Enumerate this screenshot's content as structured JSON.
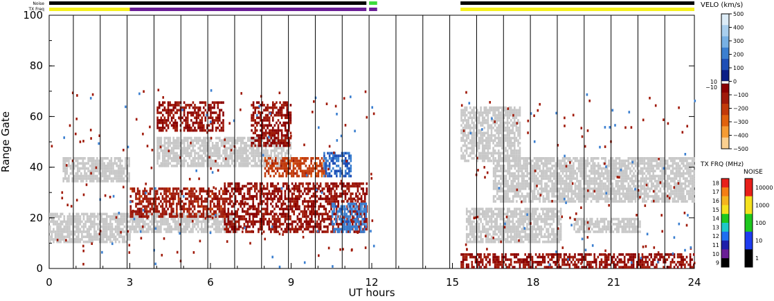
{
  "header": {
    "noise_label": "Noise",
    "txfreq_label": "TX Freq"
  },
  "chart_data": {
    "type": "heatmap",
    "xlabel": "UT hours",
    "ylabel": "Range Gate",
    "xlim": [
      0,
      24
    ],
    "ylim": [
      0,
      100
    ],
    "x_ticks": [
      "0",
      "3",
      "6",
      "9",
      "12",
      "15",
      "18",
      "21",
      "24"
    ],
    "y_ticks": [
      "0",
      "20",
      "40",
      "60",
      "80",
      "100"
    ],
    "velocity_scale": {
      "title": "VELO (km/s)",
      "ticks": [
        "500",
        "400",
        "300",
        "200",
        "100",
        "0",
        "−100",
        "−200",
        "−300",
        "−400",
        "−500"
      ],
      "threshold_labels": [
        "10",
        "−10"
      ],
      "colors": [
        "#dcecf7",
        "#a9cfee",
        "#78b1e4",
        "#3b7fd0",
        "#1e4fb6",
        "#0b1e86",
        "#8a0000",
        "#a01a0a",
        "#c23a0a",
        "#e0620e",
        "#f59c34",
        "#fad090"
      ]
    },
    "txfreq_scale": {
      "title": "TX FRQ (MHz)",
      "ticks": [
        "18",
        "17",
        "16",
        "15",
        "14",
        "13",
        "12",
        "11",
        "10",
        "9"
      ],
      "colors": [
        "#e8201a",
        "#f57e14",
        "#f5b41e",
        "#f5e11e",
        "#1ec81e",
        "#1ec8c8",
        "#1e6ef0",
        "#1e1eaa",
        "#6a1e96",
        "#000000"
      ]
    },
    "noise_scale": {
      "title": "NOISE",
      "ticks": [
        "10000",
        "1000",
        "100",
        "10",
        "1"
      ],
      "colors": [
        "#e8201a",
        "#f5e11e",
        "#1ec81e",
        "#1e3cf0",
        "#000000"
      ]
    },
    "noise_bar_segments": [
      {
        "start": 0,
        "end": 11.8,
        "color": "#000000"
      },
      {
        "start": 11.9,
        "end": 12.2,
        "color": "#3cdc3c"
      },
      {
        "start": 15.3,
        "end": 24,
        "color": "#000000"
      }
    ],
    "txfreq_bar_segments": [
      {
        "start": 0,
        "end": 3.0,
        "color": "#f5f01e"
      },
      {
        "start": 3.0,
        "end": 11.8,
        "color": "#6a1e96"
      },
      {
        "start": 11.9,
        "end": 12.2,
        "color": "#6a1e96"
      },
      {
        "start": 15.3,
        "end": 24,
        "color": "#f5f01e"
      }
    ],
    "data_gap": [
      12.2,
      15.3
    ],
    "scan_boundaries": [
      0.9,
      1.9,
      2.9,
      3.9,
      4.9,
      5.9,
      6.9,
      7.9,
      8.9,
      9.9,
      10.9,
      11.9,
      12.9,
      13.9,
      14.9,
      15.9,
      16.9,
      17.9,
      18.9,
      19.9,
      20.9,
      21.9,
      22.9
    ],
    "ground_scatter_bands": [
      {
        "t0": 0,
        "t1": 3.0,
        "g0": 10,
        "g1": 22
      },
      {
        "t0": 0.5,
        "t1": 3.0,
        "g0": 34,
        "g1": 44
      },
      {
        "t0": 3.0,
        "t1": 7.0,
        "g0": 14,
        "g1": 22
      },
      {
        "t0": 4.0,
        "t1": 9.0,
        "g0": 40,
        "g1": 52
      },
      {
        "t0": 15.3,
        "t1": 17.5,
        "g0": 42,
        "g1": 64
      },
      {
        "t0": 16.5,
        "t1": 24,
        "g0": 26,
        "g1": 44
      },
      {
        "t0": 15.5,
        "t1": 19.0,
        "g0": 10,
        "g1": 24
      },
      {
        "t0": 19.5,
        "t1": 22.0,
        "g0": 14,
        "g1": 20
      }
    ],
    "velocity_patches": [
      {
        "t0": 3.0,
        "t1": 6.5,
        "g0": 20,
        "g1": 32,
        "v": -200
      },
      {
        "t0": 6.5,
        "t1": 11.8,
        "g0": 14,
        "g1": 34,
        "v": -150
      },
      {
        "t0": 8.0,
        "t1": 10.3,
        "g0": 36,
        "g1": 44,
        "v": -300
      },
      {
        "t0": 10.2,
        "t1": 11.2,
        "g0": 36,
        "g1": 46,
        "v": 150
      },
      {
        "t0": 10.5,
        "t1": 11.8,
        "g0": 14,
        "g1": 26,
        "v": 200
      },
      {
        "t0": 4.0,
        "t1": 6.5,
        "g0": 54,
        "g1": 66,
        "v": -150
      },
      {
        "t0": 7.5,
        "t1": 9.0,
        "g0": 48,
        "g1": 66,
        "v": -150
      },
      {
        "t0": 15.3,
        "t1": 24,
        "g0": 0,
        "g1": 6,
        "v": -150
      }
    ]
  }
}
